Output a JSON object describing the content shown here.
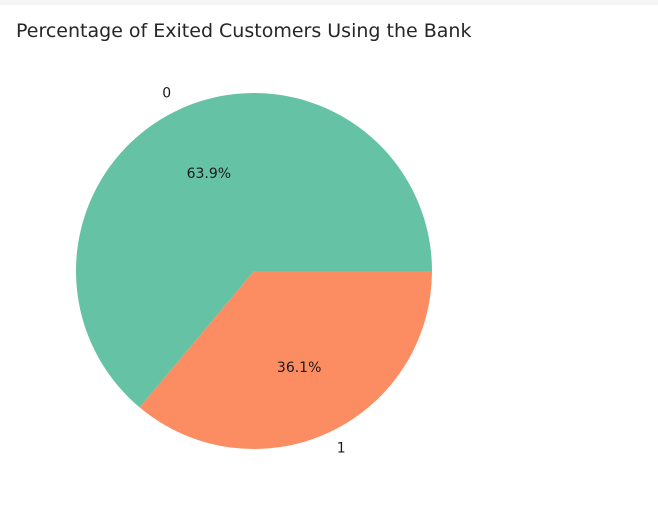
{
  "chart_data": {
    "type": "pie",
    "title": "Percentage of Exited Customers Using the Bank",
    "categories": [
      "0",
      "1"
    ],
    "values": [
      63.9,
      36.1
    ],
    "value_labels": [
      "63.9%",
      "36.1%"
    ],
    "colors": [
      "#66c2a5",
      "#fc8d62"
    ],
    "legend": "none"
  }
}
